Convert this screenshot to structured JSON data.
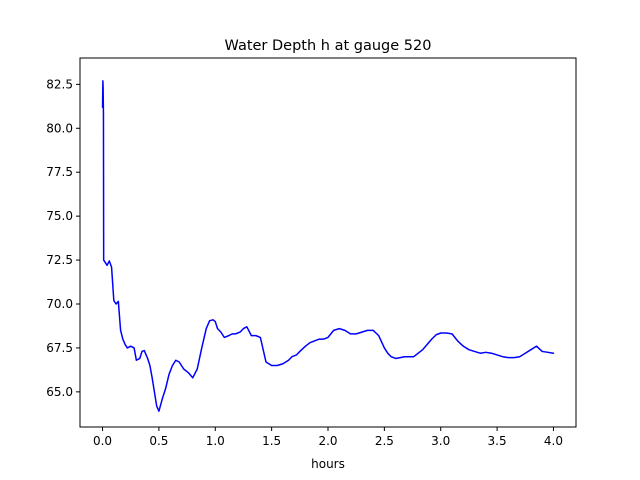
{
  "chart_data": {
    "type": "line",
    "title": "Water Depth h at gauge 520",
    "xlabel": "hours",
    "ylabel": "",
    "xlim": [
      -0.2,
      4.2
    ],
    "ylim": [
      63.0,
      84.0
    ],
    "xticks": [
      0.0,
      0.5,
      1.0,
      1.5,
      2.0,
      2.5,
      3.0,
      3.5,
      4.0
    ],
    "xtick_labels": [
      "0.0",
      "0.5",
      "1.0",
      "1.5",
      "2.0",
      "2.5",
      "3.0",
      "3.5",
      "4.0"
    ],
    "yticks": [
      65.0,
      67.5,
      70.0,
      72.5,
      75.0,
      77.5,
      80.0,
      82.5
    ],
    "ytick_labels": [
      "65.0",
      "67.5",
      "70.0",
      "72.5",
      "75.0",
      "77.5",
      "80.0",
      "82.5"
    ],
    "grid": false,
    "line_color": "#0000ff",
    "series": [
      {
        "x": [
          0.0,
          0.003,
          0.005,
          0.008,
          0.01,
          0.02,
          0.04,
          0.06,
          0.08,
          0.1,
          0.12,
          0.14,
          0.16,
          0.18,
          0.2,
          0.22,
          0.25,
          0.28,
          0.3,
          0.33,
          0.35,
          0.37,
          0.4,
          0.42,
          0.44,
          0.46,
          0.48,
          0.5,
          0.53,
          0.56,
          0.59,
          0.62,
          0.65,
          0.68,
          0.72,
          0.76,
          0.8,
          0.84,
          0.88,
          0.92,
          0.95,
          0.98,
          1.0,
          1.02,
          1.05,
          1.08,
          1.12,
          1.15,
          1.18,
          1.22,
          1.25,
          1.28,
          1.32,
          1.36,
          1.4,
          1.45,
          1.5,
          1.55,
          1.6,
          1.65,
          1.68,
          1.7,
          1.72,
          1.75,
          1.8,
          1.84,
          1.88,
          1.92,
          1.96,
          2.0,
          2.05,
          2.1,
          2.15,
          2.2,
          2.25,
          2.3,
          2.35,
          2.4,
          2.45,
          2.5,
          2.53,
          2.56,
          2.6,
          2.64,
          2.68,
          2.72,
          2.76,
          2.8,
          2.84,
          2.88,
          2.92,
          2.96,
          3.0,
          3.05,
          3.1,
          3.15,
          3.2,
          3.25,
          3.3,
          3.35,
          3.4,
          3.45,
          3.5,
          3.55,
          3.6,
          3.65,
          3.7,
          3.75,
          3.8,
          3.85,
          3.9,
          3.95,
          4.0
        ],
        "y": [
          81.2,
          82.7,
          82.3,
          80.8,
          72.5,
          72.4,
          72.2,
          72.45,
          72.1,
          70.2,
          70.0,
          70.15,
          68.5,
          68.0,
          67.7,
          67.5,
          67.6,
          67.5,
          66.8,
          66.9,
          67.3,
          67.35,
          66.9,
          66.5,
          65.8,
          65.0,
          64.2,
          63.9,
          64.6,
          65.2,
          66.0,
          66.5,
          66.8,
          66.7,
          66.3,
          66.1,
          65.8,
          66.3,
          67.5,
          68.6,
          69.05,
          69.1,
          69.0,
          68.6,
          68.4,
          68.1,
          68.2,
          68.3,
          68.3,
          68.4,
          68.6,
          68.7,
          68.2,
          68.2,
          68.1,
          66.7,
          66.5,
          66.5,
          66.6,
          66.8,
          67.0,
          67.05,
          67.1,
          67.3,
          67.6,
          67.8,
          67.9,
          68.0,
          68.0,
          68.1,
          68.5,
          68.6,
          68.5,
          68.3,
          68.3,
          68.4,
          68.5,
          68.5,
          68.2,
          67.5,
          67.2,
          67.0,
          66.9,
          66.95,
          67.0,
          67.0,
          67.0,
          67.2,
          67.4,
          67.7,
          68.0,
          68.25,
          68.35,
          68.35,
          68.3,
          67.9,
          67.6,
          67.4,
          67.3,
          67.2,
          67.25,
          67.2,
          67.1,
          67.0,
          66.95,
          66.95,
          67.0,
          67.2,
          67.4,
          67.6,
          67.3,
          67.25,
          67.2
        ]
      }
    ]
  }
}
